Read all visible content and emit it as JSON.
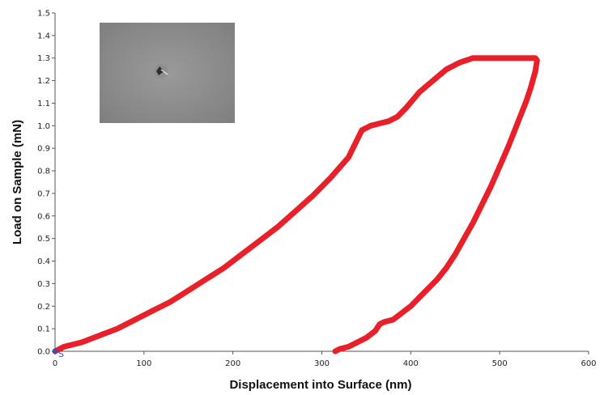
{
  "chart_data": {
    "type": "line",
    "title": "",
    "xlabel": "Displacement into Surface (nm)",
    "ylabel": "Load on Sample (mN)",
    "xlim": [
      0,
      600
    ],
    "ylim": [
      0,
      1.5
    ],
    "x_ticks": [
      0,
      100,
      200,
      300,
      400,
      500,
      600
    ],
    "y_ticks": [
      0.0,
      0.1,
      0.2,
      0.3,
      0.4,
      0.5,
      0.6,
      0.7,
      0.8,
      0.9,
      1.0,
      1.1,
      1.2,
      1.3,
      1.4,
      1.5
    ],
    "y_tick_labels": [
      "0.0",
      "0.1",
      "0.2",
      "0.3",
      "0.4",
      "0.5",
      "0.6",
      "0.7",
      "0.8",
      "0.9",
      "1.0",
      "1.1",
      "1.2",
      "1.3",
      "1.4",
      "1.5"
    ],
    "grid": false,
    "series": [
      {
        "color": "#e8202a",
        "x": [
          0,
          10,
          30,
          50,
          70,
          90,
          110,
          130,
          150,
          170,
          190,
          210,
          230,
          250,
          270,
          290,
          310,
          330,
          335,
          345,
          355,
          365,
          375,
          385,
          395,
          410,
          425,
          440,
          455,
          470,
          480,
          500,
          520,
          530,
          540,
          542,
          540,
          535,
          530,
          520,
          510,
          500,
          490,
          480,
          470,
          460,
          450,
          440,
          430,
          420,
          410,
          400,
          390,
          380,
          370,
          365,
          360,
          350,
          340,
          330,
          320,
          315
        ],
        "y": [
          0.0,
          0.02,
          0.04,
          0.07,
          0.1,
          0.14,
          0.18,
          0.22,
          0.27,
          0.32,
          0.37,
          0.43,
          0.49,
          0.55,
          0.62,
          0.69,
          0.77,
          0.86,
          0.9,
          0.98,
          1.0,
          1.01,
          1.02,
          1.04,
          1.08,
          1.15,
          1.2,
          1.25,
          1.28,
          1.3,
          1.3,
          1.3,
          1.3,
          1.3,
          1.3,
          1.29,
          1.24,
          1.17,
          1.11,
          1.01,
          0.91,
          0.82,
          0.73,
          0.65,
          0.57,
          0.5,
          0.43,
          0.37,
          0.32,
          0.28,
          0.24,
          0.2,
          0.17,
          0.14,
          0.13,
          0.12,
          0.09,
          0.06,
          0.04,
          0.02,
          0.01,
          0.0
        ]
      }
    ],
    "marker": {
      "x": 0,
      "y": 0,
      "label": "S",
      "color": "#3a4fb0"
    }
  }
}
